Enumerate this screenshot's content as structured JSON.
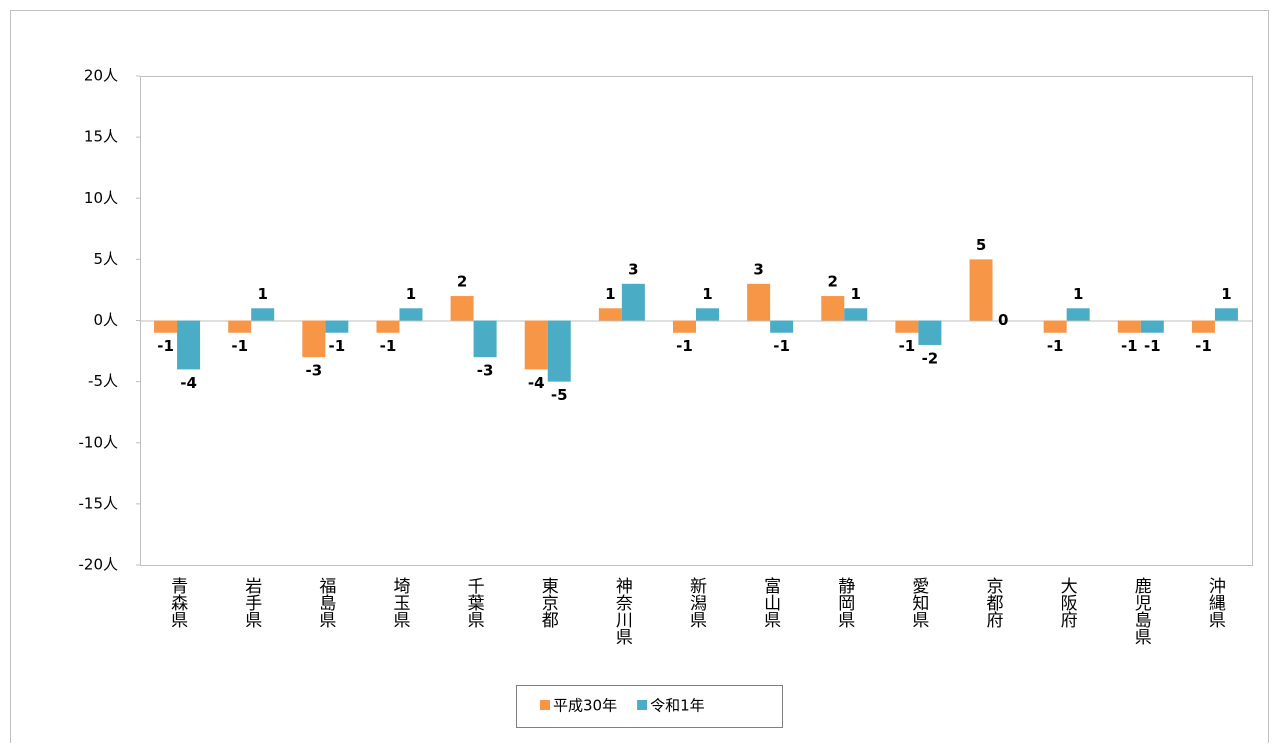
{
  "chart_data": {
    "type": "bar",
    "categories": [
      "青森県",
      "岩手県",
      "福島県",
      "埼玉県",
      "千葉県",
      "東京都",
      "神奈川県",
      "新潟県",
      "富山県",
      "静岡県",
      "愛知県",
      "京都府",
      "大阪府",
      "鹿児島県",
      "沖縄県"
    ],
    "series": [
      {
        "name": "平成30年",
        "color": "#f79646",
        "values": [
          -1,
          -1,
          -3,
          -1,
          2,
          -4,
          1,
          -1,
          3,
          2,
          -1,
          5,
          -1,
          -1,
          -1
        ]
      },
      {
        "name": "令和1年",
        "color": "#4bacc6",
        "values": [
          -4,
          1,
          -1,
          1,
          -3,
          -5,
          3,
          1,
          -1,
          1,
          -2,
          0,
          1,
          -1,
          1
        ]
      }
    ],
    "ylim": [
      -20,
      20
    ],
    "yticks": [
      {
        "value": -20,
        "label": "-20人"
      },
      {
        "value": -15,
        "label": "-15人"
      },
      {
        "value": -10,
        "label": "-10人"
      },
      {
        "value": -5,
        "label": "-5人"
      },
      {
        "value": 0,
        "label": "0人"
      },
      {
        "value": 5,
        "label": "5人"
      },
      {
        "value": 10,
        "label": "10人"
      },
      {
        "value": 15,
        "label": "15人"
      },
      {
        "value": 20,
        "label": "20人"
      }
    ],
    "grid": false,
    "legend": "bottom"
  }
}
